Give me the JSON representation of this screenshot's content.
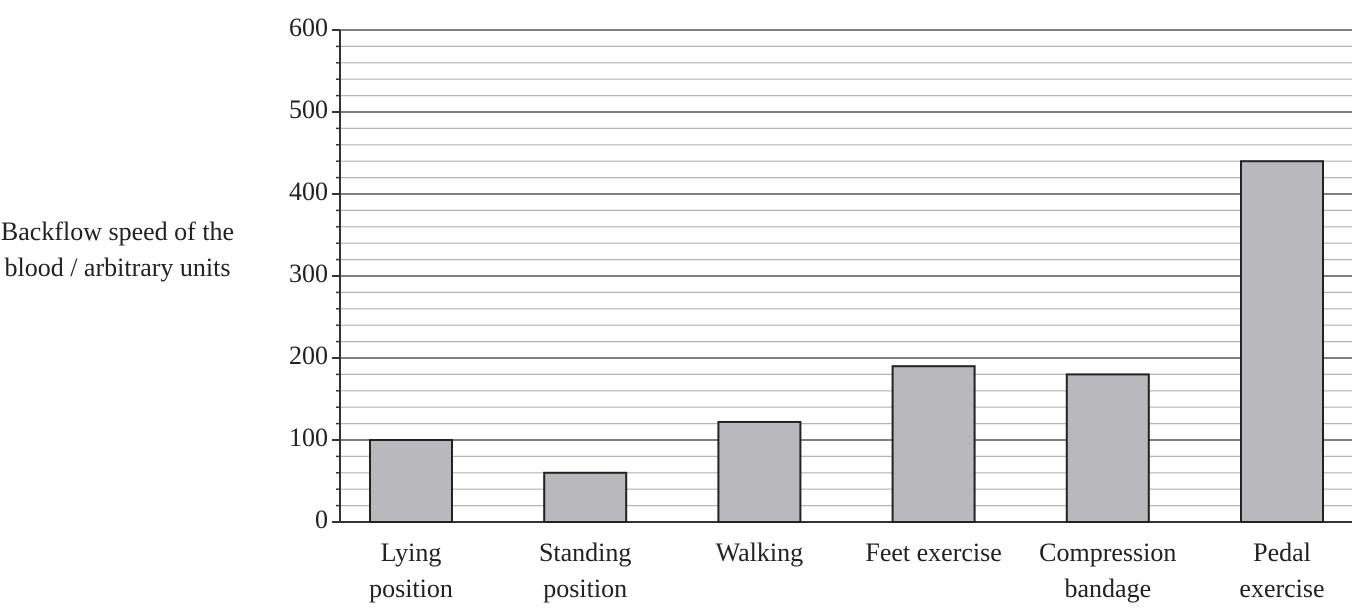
{
  "chart_data": {
    "type": "bar",
    "y_label": "Backflow speed of the blood / arbitrary units",
    "categories": [
      "Lying position",
      "Standing position",
      "Walking",
      "Feet exercise",
      "Compression bandage",
      "Pedal exercise"
    ],
    "values": [
      100,
      60,
      122,
      190,
      180,
      440
    ],
    "color": "#b9b9bd",
    "ylim": [
      0,
      600
    ],
    "yticks": [
      0,
      100,
      200,
      300,
      400,
      500,
      600
    ],
    "minor_yticks": [
      20,
      40,
      60,
      80,
      120,
      140,
      160,
      180,
      220,
      240,
      260,
      280,
      320,
      340,
      360,
      380,
      420,
      440,
      460,
      480,
      520,
      540,
      560,
      580
    ],
    "grid": true
  }
}
